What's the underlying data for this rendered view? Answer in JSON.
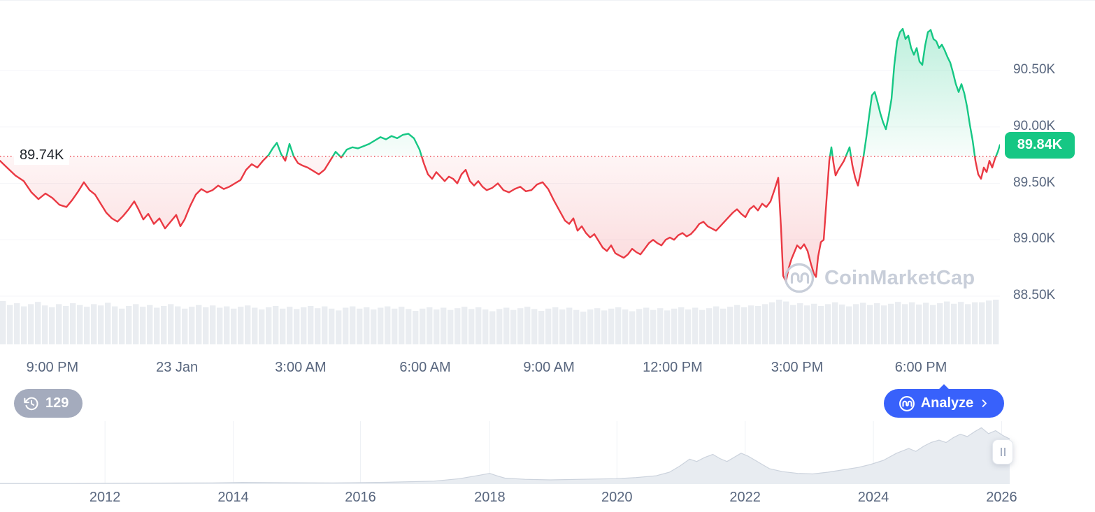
{
  "watermark": {
    "text": "CoinMarketCap"
  },
  "history_badge": {
    "count": "129"
  },
  "analyze_button": {
    "label": "Analyze"
  },
  "colors": {
    "up": "#16c784",
    "down": "#ea3943",
    "accent_blue": "#3861fb",
    "axis_text": "#58667e",
    "volume": "#eaedf1",
    "navigator_fill": "#e8ecf1",
    "navigator_edge": "#ccd3dd",
    "gridline": "#f5f6f8",
    "watermark_gray": "#c6ccd8"
  },
  "chart_data": {
    "type": "line",
    "baseline": {
      "label": "89.74K",
      "value": 89.74
    },
    "current_price": {
      "label": "89.84K",
      "value": 89.84
    },
    "y_axis": {
      "range": [
        88.4,
        91.1
      ],
      "ticks": [
        {
          "label": "90.50K",
          "value": 90.5
        },
        {
          "label": "90.00K",
          "value": 90.0
        },
        {
          "label": "89.50K",
          "value": 89.5
        },
        {
          "label": "89.00K",
          "value": 89.0
        },
        {
          "label": "88.50K",
          "value": 88.5
        }
      ]
    },
    "x_axis": {
      "ticks": [
        {
          "label": "9:00 PM",
          "pos": 0.0524
        },
        {
          "label": "23 Jan",
          "pos": 0.177
        },
        {
          "label": "3:00 AM",
          "pos": 0.3007
        },
        {
          "label": "6:00 AM",
          "pos": 0.4252
        },
        {
          "label": "9:00 AM",
          "pos": 0.549
        },
        {
          "label": "12:00 PM",
          "pos": 0.6727
        },
        {
          "label": "3:00 PM",
          "pos": 0.7972
        },
        {
          "label": "6:00 PM",
          "pos": 0.921
        }
      ]
    },
    "series": {
      "points": [
        [
          0,
          89.7
        ],
        [
          10,
          89.64
        ],
        [
          22,
          89.57
        ],
        [
          34,
          89.52
        ],
        [
          45,
          89.42
        ],
        [
          55,
          89.36
        ],
        [
          65,
          89.41
        ],
        [
          75,
          89.37
        ],
        [
          85,
          89.31
        ],
        [
          95,
          89.29
        ],
        [
          103,
          89.35
        ],
        [
          112,
          89.43
        ],
        [
          120,
          89.51
        ],
        [
          128,
          89.44
        ],
        [
          136,
          89.4
        ],
        [
          144,
          89.32
        ],
        [
          152,
          89.24
        ],
        [
          160,
          89.19
        ],
        [
          168,
          89.16
        ],
        [
          176,
          89.21
        ],
        [
          184,
          89.27
        ],
        [
          192,
          89.34
        ],
        [
          198,
          89.27
        ],
        [
          205,
          89.18
        ],
        [
          212,
          89.23
        ],
        [
          220,
          89.14
        ],
        [
          228,
          89.19
        ],
        [
          236,
          89.1
        ],
        [
          244,
          89.16
        ],
        [
          252,
          89.22
        ],
        [
          258,
          89.12
        ],
        [
          264,
          89.18
        ],
        [
          272,
          89.3
        ],
        [
          280,
          89.4
        ],
        [
          288,
          89.45
        ],
        [
          296,
          89.42
        ],
        [
          304,
          89.44
        ],
        [
          312,
          89.48
        ],
        [
          320,
          89.45
        ],
        [
          328,
          89.47
        ],
        [
          336,
          89.5
        ],
        [
          344,
          89.53
        ],
        [
          352,
          89.62
        ],
        [
          360,
          89.67
        ],
        [
          368,
          89.64
        ],
        [
          376,
          89.7
        ],
        [
          384,
          89.75
        ],
        [
          390,
          89.81
        ],
        [
          396,
          89.86
        ],
        [
          402,
          89.76
        ],
        [
          408,
          89.7
        ],
        [
          414,
          89.85
        ],
        [
          420,
          89.74
        ],
        [
          426,
          89.68
        ],
        [
          432,
          89.66
        ],
        [
          440,
          89.64
        ],
        [
          448,
          89.61
        ],
        [
          456,
          89.58
        ],
        [
          464,
          89.62
        ],
        [
          472,
          89.7
        ],
        [
          480,
          89.78
        ],
        [
          488,
          89.73
        ],
        [
          496,
          89.8
        ],
        [
          504,
          89.82
        ],
        [
          512,
          89.81
        ],
        [
          520,
          89.83
        ],
        [
          528,
          89.85
        ],
        [
          536,
          89.88
        ],
        [
          544,
          89.91
        ],
        [
          552,
          89.89
        ],
        [
          560,
          89.92
        ],
        [
          568,
          89.9
        ],
        [
          576,
          89.93
        ],
        [
          584,
          89.94
        ],
        [
          592,
          89.9
        ],
        [
          600,
          89.8
        ],
        [
          606,
          89.68
        ],
        [
          612,
          89.58
        ],
        [
          618,
          89.54
        ],
        [
          624,
          89.6
        ],
        [
          630,
          89.56
        ],
        [
          636,
          89.52
        ],
        [
          642,
          89.56
        ],
        [
          648,
          89.54
        ],
        [
          654,
          89.5
        ],
        [
          660,
          89.58
        ],
        [
          666,
          89.62
        ],
        [
          672,
          89.52
        ],
        [
          678,
          89.48
        ],
        [
          684,
          89.52
        ],
        [
          690,
          89.47
        ],
        [
          696,
          89.44
        ],
        [
          704,
          89.46
        ],
        [
          712,
          89.5
        ],
        [
          720,
          89.44
        ],
        [
          728,
          89.42
        ],
        [
          736,
          89.45
        ],
        [
          744,
          89.47
        ],
        [
          752,
          89.43
        ],
        [
          760,
          89.44
        ],
        [
          768,
          89.49
        ],
        [
          776,
          89.51
        ],
        [
          784,
          89.45
        ],
        [
          792,
          89.35
        ],
        [
          800,
          89.26
        ],
        [
          808,
          89.17
        ],
        [
          814,
          89.14
        ],
        [
          820,
          89.19
        ],
        [
          826,
          89.08
        ],
        [
          832,
          89.12
        ],
        [
          838,
          89.06
        ],
        [
          844,
          89.02
        ],
        [
          850,
          89.05
        ],
        [
          856,
          88.99
        ],
        [
          862,
          88.93
        ],
        [
          868,
          88.9
        ],
        [
          874,
          88.95
        ],
        [
          880,
          88.88
        ],
        [
          886,
          88.86
        ],
        [
          892,
          88.84
        ],
        [
          898,
          88.87
        ],
        [
          904,
          88.92
        ],
        [
          910,
          88.89
        ],
        [
          916,
          88.87
        ],
        [
          922,
          88.92
        ],
        [
          928,
          88.97
        ],
        [
          934,
          89.0
        ],
        [
          940,
          88.97
        ],
        [
          946,
          88.95
        ],
        [
          952,
          89.0
        ],
        [
          958,
          89.02
        ],
        [
          964,
          89.0
        ],
        [
          970,
          89.04
        ],
        [
          976,
          89.06
        ],
        [
          982,
          89.03
        ],
        [
          988,
          89.05
        ],
        [
          994,
          89.09
        ],
        [
          1000,
          89.14
        ],
        [
          1006,
          89.16
        ],
        [
          1012,
          89.12
        ],
        [
          1018,
          89.1
        ],
        [
          1024,
          89.08
        ],
        [
          1030,
          89.12
        ],
        [
          1036,
          89.16
        ],
        [
          1042,
          89.2
        ],
        [
          1048,
          89.24
        ],
        [
          1054,
          89.27
        ],
        [
          1060,
          89.23
        ],
        [
          1066,
          89.2
        ],
        [
          1072,
          89.27
        ],
        [
          1078,
          89.3
        ],
        [
          1084,
          89.26
        ],
        [
          1090,
          89.32
        ],
        [
          1096,
          89.29
        ],
        [
          1102,
          89.34
        ],
        [
          1108,
          89.45
        ],
        [
          1113,
          89.55
        ],
        [
          1117,
          89.1
        ],
        [
          1120,
          88.68
        ],
        [
          1124,
          88.63
        ],
        [
          1128,
          88.75
        ],
        [
          1132,
          88.83
        ],
        [
          1136,
          88.89
        ],
        [
          1140,
          88.95
        ],
        [
          1145,
          88.92
        ],
        [
          1150,
          88.96
        ],
        [
          1155,
          88.9
        ],
        [
          1160,
          88.78
        ],
        [
          1164,
          88.7
        ],
        [
          1167,
          88.67
        ],
        [
          1170,
          88.85
        ],
        [
          1174,
          88.98
        ],
        [
          1178,
          89.0
        ],
        [
          1182,
          89.35
        ],
        [
          1186,
          89.7
        ],
        [
          1189,
          89.82
        ],
        [
          1192,
          89.68
        ],
        [
          1195,
          89.57
        ],
        [
          1199,
          89.62
        ],
        [
          1203,
          89.66
        ],
        [
          1207,
          89.7
        ],
        [
          1211,
          89.76
        ],
        [
          1215,
          89.82
        ],
        [
          1219,
          89.66
        ],
        [
          1223,
          89.55
        ],
        [
          1227,
          89.48
        ],
        [
          1231,
          89.6
        ],
        [
          1235,
          89.74
        ],
        [
          1239,
          89.91
        ],
        [
          1243,
          90.1
        ],
        [
          1247,
          90.28
        ],
        [
          1251,
          90.31
        ],
        [
          1255,
          90.22
        ],
        [
          1259,
          90.12
        ],
        [
          1263,
          90.04
        ],
        [
          1267,
          89.98
        ],
        [
          1271,
          90.1
        ],
        [
          1275,
          90.25
        ],
        [
          1279,
          90.55
        ],
        [
          1283,
          90.76
        ],
        [
          1287,
          90.84
        ],
        [
          1291,
          90.87
        ],
        [
          1295,
          90.78
        ],
        [
          1299,
          90.81
        ],
        [
          1303,
          90.7
        ],
        [
          1307,
          90.64
        ],
        [
          1311,
          90.7
        ],
        [
          1315,
          90.58
        ],
        [
          1319,
          90.55
        ],
        [
          1323,
          90.72
        ],
        [
          1327,
          90.84
        ],
        [
          1331,
          90.86
        ],
        [
          1335,
          90.78
        ],
        [
          1339,
          90.76
        ],
        [
          1343,
          90.7
        ],
        [
          1347,
          90.73
        ],
        [
          1351,
          90.68
        ],
        [
          1355,
          90.62
        ],
        [
          1359,
          90.57
        ],
        [
          1363,
          90.48
        ],
        [
          1367,
          90.38
        ],
        [
          1371,
          90.31
        ],
        [
          1375,
          90.38
        ],
        [
          1379,
          90.3
        ],
        [
          1383,
          90.18
        ],
        [
          1387,
          90.02
        ],
        [
          1391,
          89.88
        ],
        [
          1395,
          89.7
        ],
        [
          1399,
          89.58
        ],
        [
          1403,
          89.54
        ],
        [
          1407,
          89.64
        ],
        [
          1411,
          89.6
        ],
        [
          1415,
          89.7
        ],
        [
          1419,
          89.64
        ],
        [
          1423,
          89.72
        ],
        [
          1427,
          89.78
        ],
        [
          1430,
          89.84
        ]
      ]
    },
    "volume": [
      0.97,
      0.88,
      0.92,
      0.85,
      0.9,
      0.95,
      0.87,
      0.83,
      0.9,
      0.86,
      0.92,
      0.88,
      0.84,
      0.9,
      0.87,
      0.93,
      0.85,
      0.8,
      0.86,
      0.9,
      0.84,
      0.88,
      0.82,
      0.86,
      0.9,
      0.85,
      0.8,
      0.84,
      0.88,
      0.83,
      0.87,
      0.82,
      0.85,
      0.8,
      0.84,
      0.87,
      0.82,
      0.78,
      0.83,
      0.86,
      0.8,
      0.84,
      0.79,
      0.83,
      0.86,
      0.81,
      0.85,
      0.8,
      0.76,
      0.82,
      0.85,
      0.8,
      0.83,
      0.78,
      0.82,
      0.85,
      0.8,
      0.84,
      0.79,
      0.75,
      0.8,
      0.83,
      0.78,
      0.82,
      0.77,
      0.81,
      0.84,
      0.79,
      0.83,
      0.78,
      0.74,
      0.79,
      0.82,
      0.77,
      0.81,
      0.84,
      0.79,
      0.75,
      0.8,
      0.83,
      0.78,
      0.82,
      0.77,
      0.73,
      0.78,
      0.81,
      0.76,
      0.8,
      0.83,
      0.78,
      0.74,
      0.79,
      0.82,
      0.77,
      0.81,
      0.76,
      0.8,
      0.83,
      0.78,
      0.82,
      0.77,
      0.81,
      0.85,
      0.8,
      0.84,
      0.88,
      0.83,
      0.87,
      0.86,
      0.9,
      0.94,
      1.0,
      0.96,
      0.88,
      0.92,
      0.87,
      0.91,
      0.86,
      0.9,
      0.94,
      0.89,
      0.85,
      0.9,
      0.93,
      0.88,
      0.92,
      0.87,
      0.91,
      0.95,
      0.9,
      0.94,
      0.89,
      0.93,
      0.88,
      0.92,
      0.96,
      0.91,
      0.95,
      0.9,
      0.94,
      0.94,
      0.98,
      1.0
    ],
    "navigator": {
      "years": [
        {
          "label": "2012",
          "pos": 0.104
        },
        {
          "label": "2014",
          "pos": 0.231
        },
        {
          "label": "2016",
          "pos": 0.357
        },
        {
          "label": "2018",
          "pos": 0.485
        },
        {
          "label": "2020",
          "pos": 0.611
        },
        {
          "label": "2022",
          "pos": 0.738
        },
        {
          "label": "2024",
          "pos": 0.865
        },
        {
          "label": "2026",
          "pos": 0.992
        }
      ],
      "points": [
        [
          0,
          0.01
        ],
        [
          0.07,
          0.01
        ],
        [
          0.14,
          0.015
        ],
        [
          0.21,
          0.02
        ],
        [
          0.24,
          0.028
        ],
        [
          0.29,
          0.022
        ],
        [
          0.33,
          0.02
        ],
        [
          0.38,
          0.03
        ],
        [
          0.43,
          0.05
        ],
        [
          0.455,
          0.09
        ],
        [
          0.475,
          0.15
        ],
        [
          0.485,
          0.18
        ],
        [
          0.492,
          0.14
        ],
        [
          0.5,
          0.1
        ],
        [
          0.52,
          0.08
        ],
        [
          0.545,
          0.07
        ],
        [
          0.575,
          0.08
        ],
        [
          0.61,
          0.09
        ],
        [
          0.63,
          0.11
        ],
        [
          0.65,
          0.14
        ],
        [
          0.663,
          0.2
        ],
        [
          0.673,
          0.3
        ],
        [
          0.683,
          0.42
        ],
        [
          0.69,
          0.38
        ],
        [
          0.698,
          0.45
        ],
        [
          0.706,
          0.5
        ],
        [
          0.713,
          0.43
        ],
        [
          0.72,
          0.38
        ],
        [
          0.727,
          0.45
        ],
        [
          0.734,
          0.52
        ],
        [
          0.741,
          0.47
        ],
        [
          0.748,
          0.4
        ],
        [
          0.755,
          0.33
        ],
        [
          0.762,
          0.26
        ],
        [
          0.775,
          0.21
        ],
        [
          0.79,
          0.18
        ],
        [
          0.805,
          0.17
        ],
        [
          0.82,
          0.2
        ],
        [
          0.835,
          0.24
        ],
        [
          0.85,
          0.28
        ],
        [
          0.862,
          0.33
        ],
        [
          0.875,
          0.4
        ],
        [
          0.888,
          0.52
        ],
        [
          0.9,
          0.6
        ],
        [
          0.907,
          0.55
        ],
        [
          0.915,
          0.64
        ],
        [
          0.922,
          0.7
        ],
        [
          0.93,
          0.74
        ],
        [
          0.937,
          0.7
        ],
        [
          0.944,
          0.78
        ],
        [
          0.951,
          0.84
        ],
        [
          0.958,
          0.8
        ],
        [
          0.965,
          0.88
        ],
        [
          0.972,
          0.95
        ],
        [
          0.979,
          0.85
        ],
        [
          0.986,
          0.9
        ],
        [
          0.993,
          0.82
        ],
        [
          1,
          0.76
        ]
      ]
    }
  }
}
